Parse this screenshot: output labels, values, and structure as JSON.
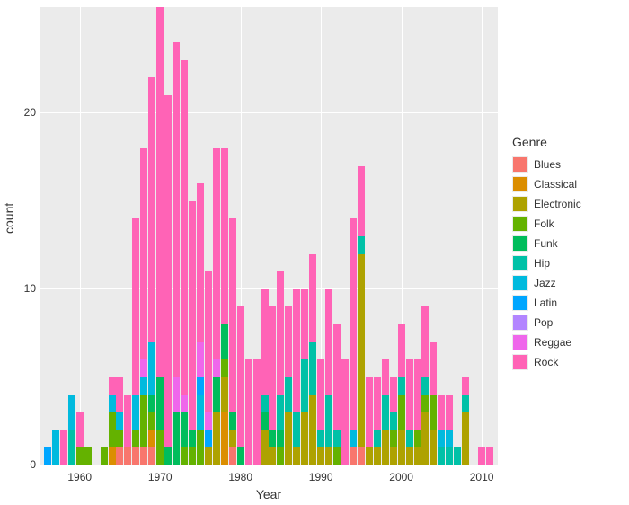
{
  "chart": {
    "type": "stacked-bar",
    "xlabel": "Year",
    "ylabel": "count",
    "legend_title": "Genre",
    "label_fontsize": 14,
    "tick_fontsize": 12,
    "panel_bg": "#ebebeb",
    "grid_color": "#ffffff",
    "grid_width": 1,
    "plot_bg": "#ffffff",
    "xlim": [
      1955,
      2012
    ],
    "ylim": [
      0,
      26
    ],
    "xticks": [
      1960,
      1970,
      1980,
      1990,
      2000,
      2010
    ],
    "yticks": [
      0,
      10,
      20
    ],
    "bar_width_years": 0.9,
    "genres": [
      "Blues",
      "Classical",
      "Electronic",
      "Folk",
      "Funk",
      "Hip",
      "Jazz",
      "Latin",
      "Pop",
      "Reggae",
      "Rock"
    ],
    "colors": {
      "Blues": "#f8766d",
      "Classical": "#db8e00",
      "Electronic": "#aea200",
      "Folk": "#64b200",
      "Funk": "#00bd5c",
      "Hip": "#00c1a7",
      "Jazz": "#00bade",
      "Latin": "#00a6ff",
      "Pop": "#b385ff",
      "Reggae": "#ef67eb",
      "Rock": "#ff63b6"
    },
    "years": [
      1956,
      1957,
      1958,
      1959,
      1960,
      1961,
      1963,
      1964,
      1965,
      1966,
      1967,
      1968,
      1969,
      1970,
      1971,
      1972,
      1973,
      1974,
      1975,
      1976,
      1977,
      1978,
      1979,
      1980,
      1981,
      1982,
      1983,
      1984,
      1985,
      1986,
      1987,
      1988,
      1989,
      1990,
      1991,
      1992,
      1993,
      1994,
      1995,
      1996,
      1997,
      1998,
      1999,
      2000,
      2001,
      2002,
      2003,
      2004,
      2005,
      2006,
      2007,
      2008,
      2010,
      2011
    ],
    "stacks": [
      {
        "Latin": 1
      },
      {
        "Jazz": 2
      },
      {
        "Rock": 2
      },
      {
        "Jazz": 2,
        "Hip": 2
      },
      {
        "Rock": 2,
        "Folk": 1
      },
      {
        "Folk": 1
      },
      {
        "Folk": 1
      },
      {
        "Rock": 1,
        "Jazz": 1,
        "Folk": 2,
        "Classical": 1
      },
      {
        "Rock": 2,
        "Jazz": 1,
        "Blues": 1,
        "Folk": 1
      },
      {
        "Rock": 3,
        "Blues": 1
      },
      {
        "Rock": 10,
        "Jazz": 2,
        "Folk": 1,
        "Blues": 1
      },
      {
        "Rock": 12,
        "Reggae": 1,
        "Jazz": 1,
        "Folk": 3,
        "Blues": 1
      },
      {
        "Rock": 15,
        "Jazz": 3,
        "Funk": 1,
        "Folk": 1,
        "Classical": 1,
        "Blues": 1
      },
      {
        "Rock": 21,
        "Folk": 2,
        "Funk": 3
      },
      {
        "Rock": 20,
        "Funk": 1
      },
      {
        "Rock": 19,
        "Reggae": 2,
        "Funk": 3
      },
      {
        "Rock": 19,
        "Reggae": 1,
        "Funk": 2,
        "Folk": 1
      },
      {
        "Rock": 13,
        "Folk": 1,
        "Funk": 1
      },
      {
        "Rock": 9,
        "Reggae": 2,
        "Latin": 1,
        "Jazz": 2,
        "Folk": 2
      },
      {
        "Rock": 8,
        "Reggae": 1,
        "Latin": 1,
        "Electronic": 1
      },
      {
        "Rock": 12,
        "Reggae": 1,
        "Funk": 2,
        "Electronic": 3
      },
      {
        "Rock": 10,
        "Funk": 2,
        "Folk": 1,
        "Electronic": 2,
        "Classical": 3
      },
      {
        "Rock": 11,
        "Funk": 1,
        "Electronic": 1,
        "Blues": 1
      },
      {
        "Rock": 8,
        "Funk": 1
      },
      {
        "Rock": 6
      },
      {
        "Rock": 6
      },
      {
        "Rock": 6,
        "Hip": 1,
        "Funk": 1,
        "Electronic": 2
      },
      {
        "Rock": 7,
        "Funk": 1,
        "Electronic": 1
      },
      {
        "Rock": 7,
        "Hip": 2,
        "Funk": 1,
        "Folk": 1
      },
      {
        "Rock": 4,
        "Hip": 2,
        "Electronic": 3
      },
      {
        "Rock": 7,
        "Hip": 2,
        "Electronic": 1
      },
      {
        "Rock": 4,
        "Hip": 3,
        "Electronic": 3
      },
      {
        "Rock": 5,
        "Hip": 3,
        "Electronic": 4
      },
      {
        "Rock": 4,
        "Hip": 1,
        "Electronic": 1
      },
      {
        "Rock": 6,
        "Hip": 3,
        "Electronic": 1
      },
      {
        "Rock": 6,
        "Hip": 1,
        "Folk": 1
      },
      {
        "Rock": 6
      },
      {
        "Rock": 12,
        "Jazz": 1,
        "Blues": 1
      },
      {
        "Rock": 4,
        "Hip": 1,
        "Electronic": 11,
        "Blues": 1
      },
      {
        "Rock": 4,
        "Electronic": 1
      },
      {
        "Rock": 3,
        "Hip": 1,
        "Electronic": 1
      },
      {
        "Rock": 2,
        "Hip": 2,
        "Electronic": 2
      },
      {
        "Rock": 2,
        "Hip": 1,
        "Folk": 1,
        "Electronic": 1
      },
      {
        "Rock": 3,
        "Hip": 1,
        "Folk": 2,
        "Electronic": 2
      },
      {
        "Rock": 4,
        "Hip": 1,
        "Electronic": 1
      },
      {
        "Rock": 4,
        "Folk": 1,
        "Electronic": 1
      },
      {
        "Rock": 4,
        "Hip": 1,
        "Folk": 1,
        "Electronic": 3
      },
      {
        "Rock": 3,
        "Folk": 2,
        "Electronic": 2
      },
      {
        "Rock": 2,
        "Jazz": 1,
        "Hip": 1
      },
      {
        "Rock": 2,
        "Jazz": 1,
        "Hip": 1
      },
      {
        "Hip": 1
      },
      {
        "Rock": 1,
        "Hip": 1,
        "Electronic": 3
      },
      {
        "Rock": 1
      },
      {
        "Rock": 1
      }
    ]
  }
}
